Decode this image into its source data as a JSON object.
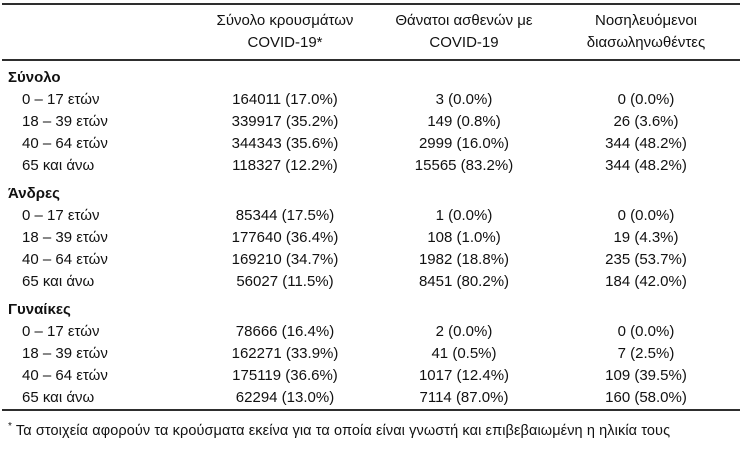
{
  "page": {
    "background_color": "#ffffff",
    "text_color": "#111111",
    "rule_color": "#2e2e2e"
  },
  "table": {
    "header": {
      "col_cases": {
        "line1": "Σύνολο κρουσμάτων",
        "line2": "COVID-19*"
      },
      "col_deaths": {
        "line1": "Θάνατοι ασθενών με",
        "line2": "COVID-19"
      },
      "col_intubated": {
        "line1": "Νοσηλευόμενοι",
        "line2": "διασωληνωθέντες"
      }
    },
    "sections": [
      {
        "label": "Σύνολο",
        "rows": [
          {
            "label": "0 – 17 ετών",
            "cases": "164011 (17.0%)",
            "deaths": "3 (0.0%)",
            "intubated": "0 (0.0%)"
          },
          {
            "label": "18 – 39 ετών",
            "cases": "339917 (35.2%)",
            "deaths": "149 (0.8%)",
            "intubated": "26 (3.6%)"
          },
          {
            "label": "40 – 64 ετών",
            "cases": "344343 (35.6%)",
            "deaths": "2999 (16.0%)",
            "intubated": "344 (48.2%)"
          },
          {
            "label": "65 και άνω",
            "cases": "118327 (12.2%)",
            "deaths": "15565 (83.2%)",
            "intubated": "344 (48.2%)"
          }
        ]
      },
      {
        "label": "Άνδρες",
        "rows": [
          {
            "label": "0 – 17 ετών",
            "cases": "85344 (17.5%)",
            "deaths": "1 (0.0%)",
            "intubated": "0 (0.0%)"
          },
          {
            "label": "18 – 39 ετών",
            "cases": "177640 (36.4%)",
            "deaths": "108 (1.0%)",
            "intubated": "19 (4.3%)"
          },
          {
            "label": "40 – 64 ετών",
            "cases": "169210 (34.7%)",
            "deaths": "1982 (18.8%)",
            "intubated": "235 (53.7%)"
          },
          {
            "label": "65 και άνω",
            "cases": "56027 (11.5%)",
            "deaths": "8451 (80.2%)",
            "intubated": "184 (42.0%)"
          }
        ]
      },
      {
        "label": "Γυναίκες",
        "rows": [
          {
            "label": "0 – 17 ετών",
            "cases": "78666 (16.4%)",
            "deaths": "2 (0.0%)",
            "intubated": "0 (0.0%)"
          },
          {
            "label": "18 – 39 ετών",
            "cases": "162271 (33.9%)",
            "deaths": "41 (0.5%)",
            "intubated": "7 (2.5%)"
          },
          {
            "label": "40 – 64 ετών",
            "cases": "175119 (36.6%)",
            "deaths": "1017 (12.4%)",
            "intubated": "109 (39.5%)"
          },
          {
            "label": "65 και άνω",
            "cases": "62294 (13.0%)",
            "deaths": "7114 (87.0%)",
            "intubated": "160 (58.0%)"
          }
        ]
      }
    ]
  },
  "footnote": {
    "marker": "*",
    "text": "Τα στοιχεία αφορούν τα κρούσματα εκείνα για τα οποία είναι γνωστή και επιβεβαιωμένη η ηλικία τους"
  }
}
